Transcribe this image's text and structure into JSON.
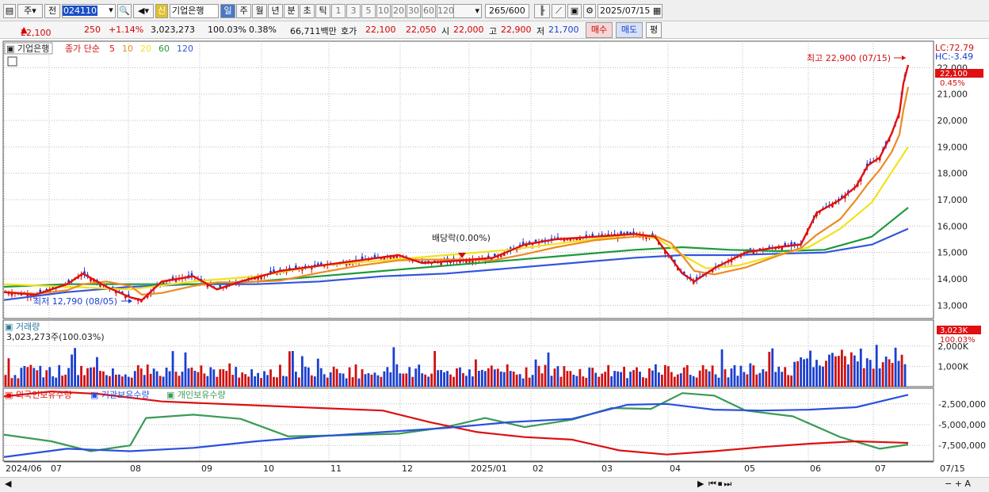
{
  "toolbar": {
    "market": "주",
    "prev": "전",
    "code": "024110",
    "badge": "신",
    "stock_name": "기업은행",
    "periods": [
      "일",
      "주",
      "월",
      "년",
      "분",
      "초",
      "틱"
    ],
    "active_period": "일",
    "intervals": [
      "1",
      "3",
      "5",
      "10",
      "20",
      "30",
      "60",
      "120"
    ],
    "count": "265",
    "count_max": "/600",
    "date": "2025/07/15"
  },
  "info": {
    "price": "22,100",
    "change": "250",
    "change_pct": "+1.14%",
    "volume": "3,023,273",
    "vol_ratio": "100.03%",
    "turnover": "0.38%",
    "amount": "66,711백만",
    "ask_label": "호가",
    "ask1": "22,100",
    "ask2": "22,050",
    "open_label": "시",
    "open": "22,000",
    "high_label": "고",
    "high": "22,900",
    "low_label": "저",
    "low": "21,700",
    "buy": "매수",
    "sell": "매도",
    "eval": "평"
  },
  "price_panel": {
    "name": "기업은행",
    "ma_label": "종가 단순",
    "ma": [
      {
        "p": "5",
        "color": "#e01010"
      },
      {
        "p": "10",
        "color": "#ee8a22"
      },
      {
        "p": "20",
        "color": "#f2e21a"
      },
      {
        "p": "60",
        "color": "#1e9a3a"
      },
      {
        "p": "120",
        "color": "#3355dd"
      }
    ],
    "lc": "LC:72.79",
    "hc": "HC:-3.49",
    "current_tag": "22,100",
    "current_pct": "0.45%",
    "high_note": "최고 22,900 (07/15)",
    "low_note": "최저 12,790 (08/05)",
    "dividend_note": "배당락(0.00%)",
    "yticks": [
      "22,000",
      "21,000",
      "20,000",
      "19,000",
      "18,000",
      "17,000",
      "16,000",
      "15,000",
      "14,000",
      "13,000"
    ]
  },
  "volume_panel": {
    "title": "거래량",
    "summary": "3,023,273주(100.03%)",
    "tag": "3,023K",
    "tag_pct": "100.03%",
    "yticks": [
      "2,000K",
      "1,000K"
    ]
  },
  "holding_panel": {
    "legend": [
      {
        "name": "외국인보유수량",
        "color": "#dd1010"
      },
      {
        "name": "기관보유수량",
        "color": "#2a50dd"
      },
      {
        "name": "개인보유수량",
        "color": "#3a9a55"
      }
    ],
    "yticks": [
      "-2,500,000",
      "-5,000,000",
      "-7,500,000"
    ]
  },
  "xaxis": [
    "2024/06",
    "07",
    "08",
    "09",
    "10",
    "11",
    "12",
    "2025/01",
    "02",
    "03",
    "04",
    "05",
    "06",
    "07",
    "07/15"
  ],
  "chart_data": {
    "type": "line",
    "title": "기업은행",
    "y_range": [
      12500,
      23000
    ],
    "price_ticks": [
      22000,
      21000,
      20000,
      19000,
      18000,
      17000,
      16000,
      15000,
      14000,
      13000
    ],
    "close_points": [
      [
        0,
        13500
      ],
      [
        40,
        13400
      ],
      [
        80,
        13800
      ],
      [
        100,
        14200
      ],
      [
        130,
        13700
      ],
      [
        160,
        13300
      ],
      [
        175,
        13200
      ],
      [
        200,
        13900
      ],
      [
        240,
        14100
      ],
      [
        270,
        13600
      ],
      [
        300,
        13900
      ],
      [
        350,
        14300
      ],
      [
        400,
        14500
      ],
      [
        450,
        14700
      ],
      [
        500,
        14900
      ],
      [
        530,
        14600
      ],
      [
        580,
        14700
      ],
      [
        620,
        14800
      ],
      [
        660,
        15300
      ],
      [
        700,
        15500
      ],
      [
        750,
        15600
      ],
      [
        800,
        15700
      ],
      [
        825,
        15600
      ],
      [
        845,
        14800
      ],
      [
        860,
        14200
      ],
      [
        875,
        13900
      ],
      [
        900,
        14400
      ],
      [
        940,
        15000
      ],
      [
        980,
        15200
      ],
      [
        1010,
        15300
      ],
      [
        1030,
        16500
      ],
      [
        1060,
        17000
      ],
      [
        1080,
        17500
      ],
      [
        1095,
        18300
      ],
      [
        1110,
        18600
      ],
      [
        1125,
        19500
      ],
      [
        1135,
        20300
      ],
      [
        1140,
        21400
      ],
      [
        1146,
        22100
      ]
    ],
    "ma20_points": [
      [
        0,
        13800
      ],
      [
        80,
        13700
      ],
      [
        160,
        13600
      ],
      [
        240,
        13900
      ],
      [
        320,
        14100
      ],
      [
        400,
        14500
      ],
      [
        480,
        14700
      ],
      [
        560,
        14900
      ],
      [
        640,
        15100
      ],
      [
        720,
        15400
      ],
      [
        800,
        15700
      ],
      [
        830,
        15500
      ],
      [
        860,
        14900
      ],
      [
        890,
        14400
      ],
      [
        930,
        14500
      ],
      [
        980,
        14900
      ],
      [
        1020,
        15200
      ],
      [
        1060,
        15900
      ],
      [
        1100,
        16900
      ],
      [
        1146,
        19000
      ]
    ],
    "ma60_points": [
      [
        0,
        13700
      ],
      [
        80,
        13800
      ],
      [
        160,
        13800
      ],
      [
        240,
        13800
      ],
      [
        320,
        13900
      ],
      [
        400,
        14100
      ],
      [
        480,
        14300
      ],
      [
        560,
        14500
      ],
      [
        640,
        14700
      ],
      [
        720,
        14900
      ],
      [
        800,
        15100
      ],
      [
        860,
        15200
      ],
      [
        920,
        15100
      ],
      [
        980,
        15050
      ],
      [
        1040,
        15100
      ],
      [
        1100,
        15600
      ],
      [
        1146,
        16700
      ]
    ],
    "ma120_points": [
      [
        0,
        13200
      ],
      [
        80,
        13500
      ],
      [
        160,
        13700
      ],
      [
        240,
        13800
      ],
      [
        320,
        13800
      ],
      [
        400,
        13900
      ],
      [
        480,
        14100
      ],
      [
        560,
        14200
      ],
      [
        640,
        14400
      ],
      [
        720,
        14600
      ],
      [
        800,
        14800
      ],
      [
        860,
        14900
      ],
      [
        920,
        14900
      ],
      [
        980,
        14950
      ],
      [
        1040,
        15000
      ],
      [
        1100,
        15300
      ],
      [
        1146,
        15900
      ]
    ],
    "foreign_points": [
      [
        0,
        -1600000
      ],
      [
        60,
        -1000000
      ],
      [
        120,
        -1300000
      ],
      [
        200,
        -2200000
      ],
      [
        300,
        -2600000
      ],
      [
        400,
        -3000000
      ],
      [
        480,
        -3300000
      ],
      [
        540,
        -4700000
      ],
      [
        600,
        -5900000
      ],
      [
        660,
        -6500000
      ],
      [
        720,
        -6800000
      ],
      [
        780,
        -8100000
      ],
      [
        840,
        -8600000
      ],
      [
        900,
        -8200000
      ],
      [
        960,
        -7700000
      ],
      [
        1020,
        -7300000
      ],
      [
        1080,
        -7000000
      ],
      [
        1146,
        -7200000
      ]
    ],
    "inst_points": [
      [
        0,
        -8900000
      ],
      [
        80,
        -7900000
      ],
      [
        160,
        -8200000
      ],
      [
        240,
        -7800000
      ],
      [
        320,
        -7000000
      ],
      [
        400,
        -6400000
      ],
      [
        480,
        -5900000
      ],
      [
        560,
        -5400000
      ],
      [
        640,
        -4700000
      ],
      [
        720,
        -4300000
      ],
      [
        790,
        -2600000
      ],
      [
        840,
        -2500000
      ],
      [
        900,
        -3200000
      ],
      [
        960,
        -3300000
      ],
      [
        1020,
        -3200000
      ],
      [
        1080,
        -2900000
      ],
      [
        1146,
        -1400000
      ]
    ],
    "retail_points": [
      [
        0,
        -6200000
      ],
      [
        60,
        -7000000
      ],
      [
        110,
        -8200000
      ],
      [
        160,
        -7500000
      ],
      [
        180,
        -4200000
      ],
      [
        240,
        -3800000
      ],
      [
        300,
        -4300000
      ],
      [
        360,
        -6400000
      ],
      [
        420,
        -6300000
      ],
      [
        500,
        -6100000
      ],
      [
        560,
        -5300000
      ],
      [
        610,
        -4200000
      ],
      [
        660,
        -5300000
      ],
      [
        720,
        -4400000
      ],
      [
        770,
        -3000000
      ],
      [
        820,
        -3100000
      ],
      [
        860,
        -1200000
      ],
      [
        900,
        -1500000
      ],
      [
        940,
        -3300000
      ],
      [
        1000,
        -4000000
      ],
      [
        1060,
        -6500000
      ],
      [
        1110,
        -7900000
      ],
      [
        1146,
        -7400000
      ]
    ]
  }
}
